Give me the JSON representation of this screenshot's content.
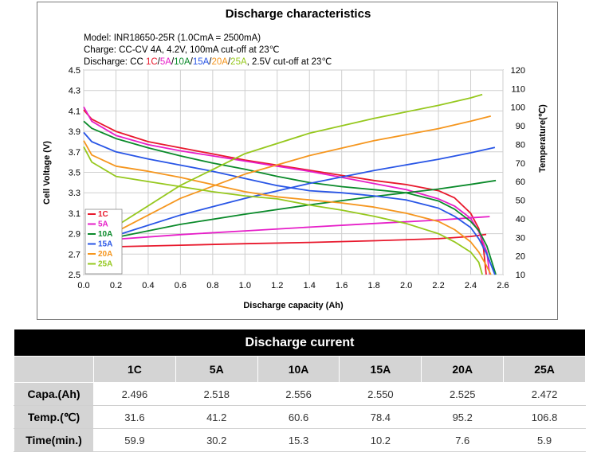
{
  "chart_data": {
    "type": "line",
    "title": "Discharge characteristics",
    "info": {
      "model": "Model: INR18650-25R (1.0CmA = 2500mA)",
      "charge": "Charge: CC-CV 4A, 4.2V, 100mA cut-off at 23℃",
      "discharge_prefix": "Discharge: CC ",
      "discharge_suffix": ", 2.5V cut-off at 23℃",
      "separator": "/"
    },
    "xlabel": "Discharge capacity (Ah)",
    "ylabel": "Cell Voltage (V)",
    "y2label": "Temperature(℃)",
    "xlim": [
      0.0,
      2.6
    ],
    "ylim": [
      2.5,
      4.5
    ],
    "y2lim": [
      10,
      120
    ],
    "xticks": [
      "0.0",
      "0.2",
      "0.4",
      "0.6",
      "0.8",
      "1.0",
      "1.2",
      "1.4",
      "1.6",
      "1.8",
      "2.0",
      "2.2",
      "2.4",
      "2.6"
    ],
    "yticks": [
      "2.5",
      "2.7",
      "2.9",
      "3.1",
      "3.3",
      "3.5",
      "3.7",
      "3.9",
      "4.1",
      "4.3",
      "4.5"
    ],
    "y2ticks": [
      "10",
      "20",
      "30",
      "40",
      "50",
      "60",
      "70",
      "80",
      "90",
      "100",
      "110",
      "120"
    ],
    "grid": true,
    "legend_position": "bottom-left",
    "series": [
      {
        "name": "1C",
        "color": "#e8182c",
        "voltage": [
          [
            0,
            4.11
          ],
          [
            0.05,
            4.02
          ],
          [
            0.2,
            3.9
          ],
          [
            0.4,
            3.8
          ],
          [
            0.6,
            3.74
          ],
          [
            0.8,
            3.68
          ],
          [
            1.0,
            3.62
          ],
          [
            1.2,
            3.57
          ],
          [
            1.4,
            3.52
          ],
          [
            1.6,
            3.47
          ],
          [
            1.8,
            3.42
          ],
          [
            2.0,
            3.38
          ],
          [
            2.2,
            3.32
          ],
          [
            2.3,
            3.25
          ],
          [
            2.4,
            3.1
          ],
          [
            2.45,
            2.95
          ],
          [
            2.48,
            2.75
          ],
          [
            2.496,
            2.5
          ]
        ],
        "temperature": [
          [
            0.2,
            25
          ],
          [
            0.6,
            25.8
          ],
          [
            1.0,
            26.6
          ],
          [
            1.4,
            27.3
          ],
          [
            1.8,
            28.2
          ],
          [
            2.2,
            29.3
          ],
          [
            2.4,
            30.5
          ],
          [
            2.496,
            31.6
          ]
        ]
      },
      {
        "name": "5A",
        "color": "#e61ec8",
        "voltage": [
          [
            0,
            4.14
          ],
          [
            0.05,
            4.0
          ],
          [
            0.2,
            3.86
          ],
          [
            0.4,
            3.77
          ],
          [
            0.6,
            3.71
          ],
          [
            0.8,
            3.66
          ],
          [
            1.0,
            3.61
          ],
          [
            1.2,
            3.56
          ],
          [
            1.4,
            3.51
          ],
          [
            1.6,
            3.45
          ],
          [
            1.8,
            3.39
          ],
          [
            2.0,
            3.33
          ],
          [
            2.2,
            3.24
          ],
          [
            2.3,
            3.17
          ],
          [
            2.4,
            3.05
          ],
          [
            2.45,
            2.92
          ],
          [
            2.5,
            2.72
          ],
          [
            2.518,
            2.5
          ]
        ],
        "temperature": [
          [
            0.2,
            29
          ],
          [
            0.6,
            31.5
          ],
          [
            1.0,
            33.5
          ],
          [
            1.4,
            35.5
          ],
          [
            1.8,
            37.5
          ],
          [
            2.2,
            39.3
          ],
          [
            2.4,
            40.5
          ],
          [
            2.518,
            41.2
          ]
        ]
      },
      {
        "name": "10A",
        "color": "#0a8a2a",
        "voltage": [
          [
            0,
            4.0
          ],
          [
            0.05,
            3.93
          ],
          [
            0.2,
            3.83
          ],
          [
            0.4,
            3.74
          ],
          [
            0.6,
            3.66
          ],
          [
            0.8,
            3.59
          ],
          [
            1.0,
            3.53
          ],
          [
            1.2,
            3.46
          ],
          [
            1.4,
            3.4
          ],
          [
            1.6,
            3.36
          ],
          [
            1.8,
            3.33
          ],
          [
            2.0,
            3.3
          ],
          [
            2.2,
            3.22
          ],
          [
            2.3,
            3.14
          ],
          [
            2.4,
            3.02
          ],
          [
            2.45,
            2.93
          ],
          [
            2.5,
            2.78
          ],
          [
            2.556,
            2.5
          ]
        ],
        "temperature": [
          [
            0.2,
            30
          ],
          [
            0.6,
            37
          ],
          [
            1.0,
            42.5
          ],
          [
            1.4,
            47.5
          ],
          [
            1.8,
            52
          ],
          [
            2.2,
            56
          ],
          [
            2.4,
            58.5
          ],
          [
            2.556,
            60.6
          ]
        ]
      },
      {
        "name": "15A",
        "color": "#2855e6",
        "voltage": [
          [
            0,
            3.89
          ],
          [
            0.05,
            3.8
          ],
          [
            0.2,
            3.7
          ],
          [
            0.4,
            3.63
          ],
          [
            0.6,
            3.57
          ],
          [
            0.8,
            3.51
          ],
          [
            1.0,
            3.44
          ],
          [
            1.2,
            3.37
          ],
          [
            1.4,
            3.32
          ],
          [
            1.6,
            3.3
          ],
          [
            1.8,
            3.27
          ],
          [
            2.0,
            3.23
          ],
          [
            2.2,
            3.15
          ],
          [
            2.3,
            3.07
          ],
          [
            2.4,
            2.96
          ],
          [
            2.45,
            2.85
          ],
          [
            2.5,
            2.7
          ],
          [
            2.55,
            2.5
          ]
        ],
        "temperature": [
          [
            0.2,
            31
          ],
          [
            0.6,
            42
          ],
          [
            1.0,
            51
          ],
          [
            1.4,
            59
          ],
          [
            1.8,
            66
          ],
          [
            2.2,
            72
          ],
          [
            2.4,
            75.5
          ],
          [
            2.55,
            78.4
          ]
        ]
      },
      {
        "name": "20A",
        "color": "#f5961e",
        "voltage": [
          [
            0,
            3.81
          ],
          [
            0.05,
            3.67
          ],
          [
            0.2,
            3.56
          ],
          [
            0.4,
            3.51
          ],
          [
            0.6,
            3.45
          ],
          [
            0.8,
            3.38
          ],
          [
            1.0,
            3.31
          ],
          [
            1.2,
            3.26
          ],
          [
            1.4,
            3.23
          ],
          [
            1.6,
            3.2
          ],
          [
            1.8,
            3.16
          ],
          [
            2.0,
            3.1
          ],
          [
            2.2,
            3.02
          ],
          [
            2.3,
            2.94
          ],
          [
            2.4,
            2.82
          ],
          [
            2.45,
            2.72
          ],
          [
            2.5,
            2.58
          ],
          [
            2.525,
            2.5
          ]
        ],
        "temperature": [
          [
            0.2,
            33
          ],
          [
            0.6,
            51
          ],
          [
            1.0,
            64
          ],
          [
            1.4,
            74
          ],
          [
            1.8,
            82
          ],
          [
            2.2,
            88.5
          ],
          [
            2.4,
            92.5
          ],
          [
            2.525,
            95.2
          ]
        ]
      },
      {
        "name": "25A",
        "color": "#96c81e",
        "voltage": [
          [
            0,
            3.75
          ],
          [
            0.05,
            3.6
          ],
          [
            0.2,
            3.46
          ],
          [
            0.4,
            3.41
          ],
          [
            0.6,
            3.36
          ],
          [
            0.8,
            3.31
          ],
          [
            1.0,
            3.27
          ],
          [
            1.2,
            3.24
          ],
          [
            1.4,
            3.18
          ],
          [
            1.6,
            3.13
          ],
          [
            1.8,
            3.07
          ],
          [
            2.0,
            3.0
          ],
          [
            2.2,
            2.9
          ],
          [
            2.3,
            2.82
          ],
          [
            2.4,
            2.72
          ],
          [
            2.45,
            2.62
          ],
          [
            2.472,
            2.5
          ]
        ],
        "temperature": [
          [
            0.2,
            36
          ],
          [
            0.6,
            58
          ],
          [
            1.0,
            75
          ],
          [
            1.4,
            86
          ],
          [
            1.8,
            94
          ],
          [
            2.2,
            101
          ],
          [
            2.4,
            105
          ],
          [
            2.472,
            106.8
          ]
        ]
      }
    ]
  },
  "table": {
    "title": "Discharge current",
    "columns": [
      "1C",
      "5A",
      "10A",
      "15A",
      "20A",
      "25A"
    ],
    "rows": [
      {
        "label": "Capa.(Ah)",
        "values": [
          "2.496",
          "2.518",
          "2.556",
          "2.550",
          "2.525",
          "2.472"
        ]
      },
      {
        "label": "Temp.(℃)",
        "values": [
          "31.6",
          "41.2",
          "60.6",
          "78.4",
          "95.2",
          "106.8"
        ]
      },
      {
        "label": "Time(min.)",
        "values": [
          "59.9",
          "30.2",
          "15.3",
          "10.2",
          "7.6",
          "5.9"
        ]
      }
    ]
  }
}
